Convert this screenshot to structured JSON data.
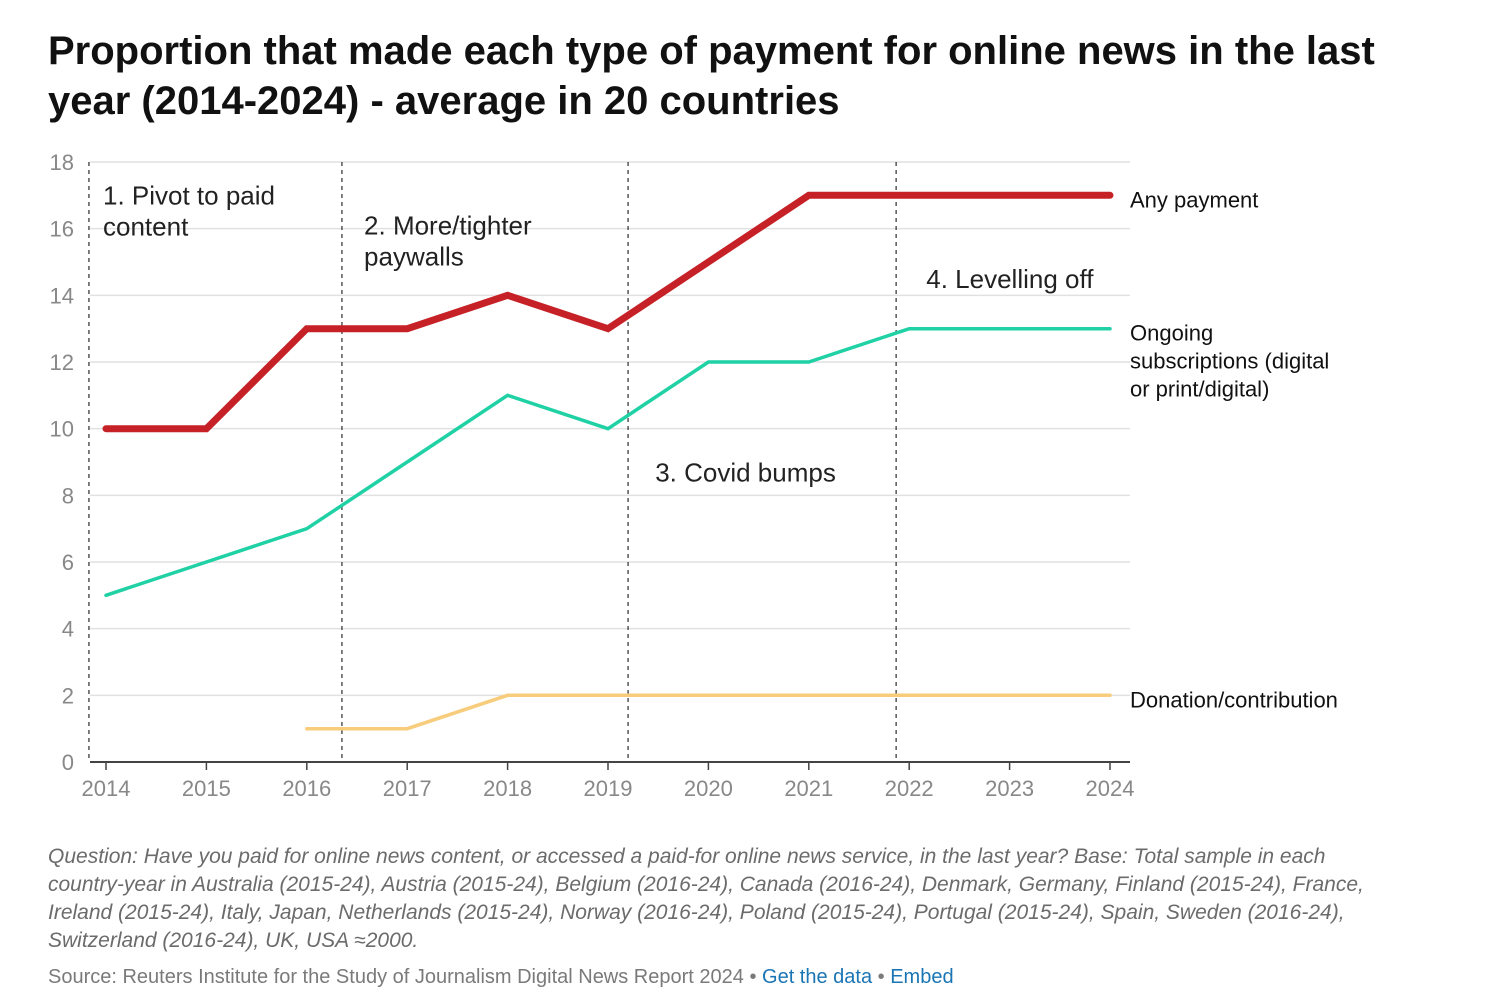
{
  "chart_data": {
    "type": "line",
    "title": "Proportion that made each type of payment for online news in the last year (2014-2024) - average in 20 countries",
    "x": [
      2014,
      2015,
      2016,
      2017,
      2018,
      2019,
      2020,
      2021,
      2022,
      2023,
      2024
    ],
    "x_tick_labels": [
      "2014",
      "2015",
      "2016",
      "2017",
      "2018",
      "2019",
      "2020",
      "2021",
      "2022",
      "2023",
      "2024"
    ],
    "ylim": [
      0,
      18
    ],
    "y_ticks": [
      0,
      2,
      4,
      6,
      8,
      10,
      12,
      14,
      16,
      18
    ],
    "xlabel": "",
    "ylabel": "",
    "grid": "horizontal",
    "legend": "direct labels at line ends (right)",
    "series": [
      {
        "name": "Any payment",
        "label_lines": [
          "Any payment"
        ],
        "color": "#c62126",
        "values": [
          10,
          10,
          13,
          13,
          14,
          13,
          15,
          17,
          17,
          17,
          17
        ]
      },
      {
        "name": "Ongoing subscriptions (digital or print/digital)",
        "label_lines": [
          "Ongoing",
          "subscriptions (digital",
          "or print/digital)"
        ],
        "color": "#1fd1a4",
        "values": [
          5,
          6,
          7,
          9,
          11,
          10,
          12,
          12,
          13,
          13,
          13
        ]
      },
      {
        "name": "Donation/contribution",
        "label_lines": [
          "Donation/contribution"
        ],
        "color": "#f7cc7a",
        "values": [
          null,
          null,
          1,
          1,
          2,
          2,
          2,
          2,
          2,
          2,
          2
        ]
      }
    ],
    "annotations": [
      {
        "lines": [
          "1. Pivot to paid",
          "content"
        ],
        "x": 2014,
        "y": 17.5
      },
      {
        "lines": [
          "2. More/tighter",
          "paywalls"
        ],
        "x": 2016.6,
        "y": 16.6
      },
      {
        "lines": [
          "3. Covid bumps"
        ],
        "x": 2019.5,
        "y": 9.2
      },
      {
        "lines": [
          "4. Levelling off"
        ],
        "x": 2022.2,
        "y": 15.0
      }
    ],
    "vertical_markers": [
      2013.83,
      2016.35,
      2019.2,
      2021.87
    ]
  },
  "note": "Question: Have you paid for online news content, or accessed a paid-for online news service, in the last year? Base: Total sample in each country-year in Australia (2015-24), Austria (2015-24), Belgium (2016-24), Canada (2016-24), Denmark, Germany, Finland (2015-24), France, Ireland (2015-24), Italy, Japan, Netherlands (2015-24), Norway (2016-24), Poland (2015-24), Portugal (2015-24), Spain, Sweden (2016-24), Switzerland (2016-24), UK, USA ≈2000.",
  "source": {
    "text": "Source: Reuters Institute for the Study of Journalism Digital News Report 2024",
    "separator": " • ",
    "get_data_label": "Get the data",
    "embed_label": "Embed"
  }
}
